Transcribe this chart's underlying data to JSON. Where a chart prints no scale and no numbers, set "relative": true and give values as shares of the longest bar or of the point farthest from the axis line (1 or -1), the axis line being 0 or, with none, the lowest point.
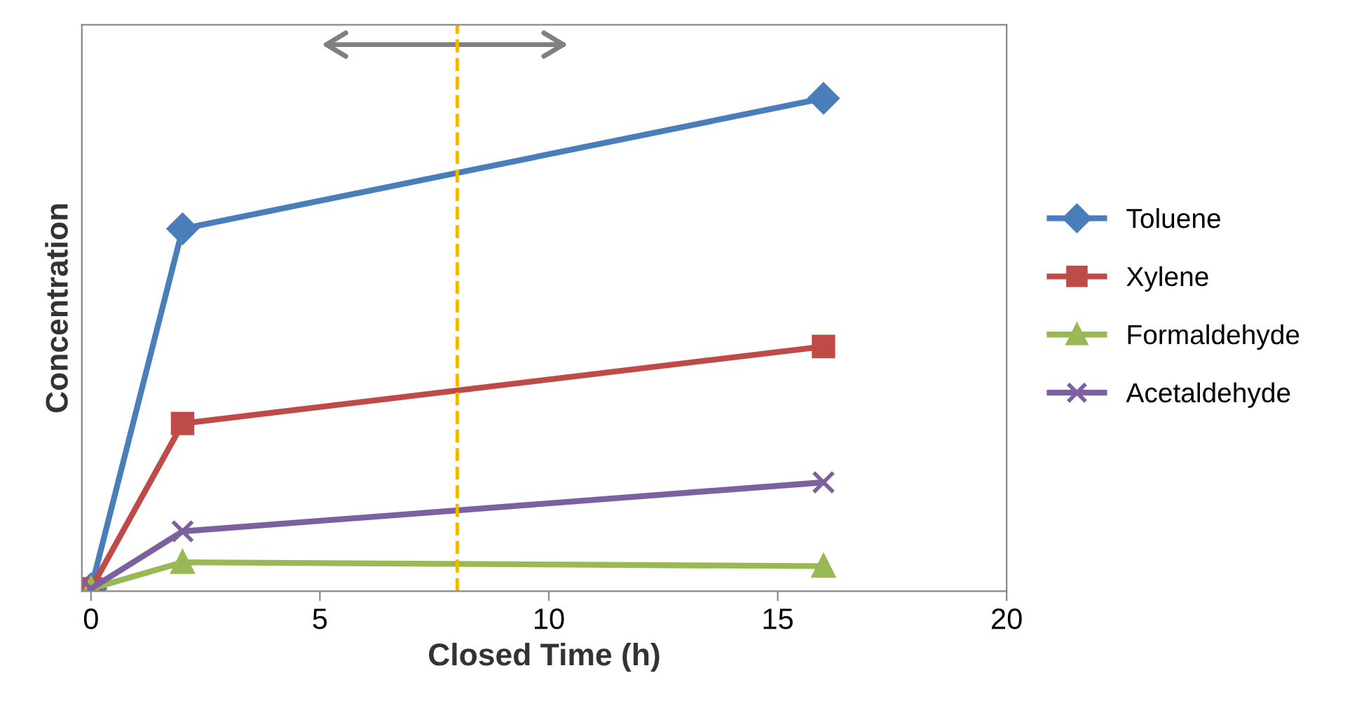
{
  "chart_data": {
    "type": "line",
    "relative": true,
    "xlabel": "Closed Time (h)",
    "ylabel": "Concentration",
    "x": [
      0,
      2,
      16
    ],
    "series": [
      {
        "name": "Toluene",
        "color": "#4a7ebb",
        "marker": "diamond",
        "values": [
          0,
          0.734,
          1
        ]
      },
      {
        "name": "Xylene",
        "color": "#be4b48",
        "marker": "square",
        "values": [
          0,
          0.337,
          0.494
        ]
      },
      {
        "name": "Formaldehyde",
        "color": "#98b954",
        "marker": "triangle",
        "values": [
          0,
          0.054,
          0.046
        ]
      },
      {
        "name": "Acetaldehyde",
        "color": "#7d60a0",
        "marker": "cross",
        "values": [
          0,
          0.117,
          0.217
        ]
      }
    ],
    "xlim": [
      -0.2,
      20
    ],
    "xticks": [
      0,
      5,
      10,
      15,
      20
    ],
    "ref_lines": [
      {
        "axis": "x",
        "value": 8,
        "color": "#f2b800",
        "line_style": "dashed"
      }
    ],
    "legend": "right",
    "grid": false,
    "line_style": "solid"
  }
}
